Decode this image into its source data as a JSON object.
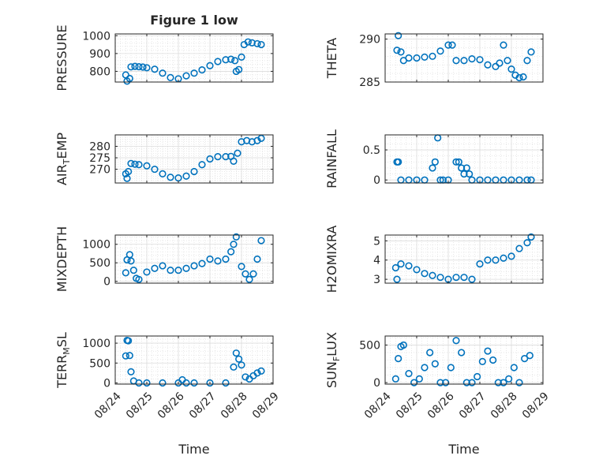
{
  "chart_data": [
    {
      "type": "scatter",
      "panel": "pressure",
      "title": "Figure 1 low",
      "ylabel": "PRESSURE",
      "ylabel_sub": "",
      "xlabel": "",
      "xlim": [
        "08/24",
        "08/29"
      ],
      "ylim": [
        740,
        1010
      ],
      "yticks": [
        800,
        900,
        1000
      ],
      "xticks": [],
      "marker_color": "#0072BD",
      "grid": true,
      "x": [
        "08/24 08:00",
        "08/24 09:00",
        "08/24 11:00",
        "08/24 12:00",
        "08/24 15:00",
        "08/24 18:00",
        "08/24 21:00",
        "08/25 00:00",
        "08/25 06:00",
        "08/25 12:00",
        "08/25 18:00",
        "08/26 00:00",
        "08/26 06:00",
        "08/26 12:00",
        "08/26 18:00",
        "08/27 00:00",
        "08/27 06:00",
        "08/27 12:00",
        "08/27 16:00",
        "08/27 19:00",
        "08/27 20:00",
        "08/27 22:00",
        "08/28 00:00",
        "08/28 02:00",
        "08/28 05:00",
        "08/28 08:00",
        "08/28 12:00",
        "08/28 15:00"
      ],
      "y": [
        780,
        745,
        760,
        825,
        828,
        826,
        824,
        820,
        812,
        790,
        765,
        758,
        775,
        790,
        808,
        832,
        855,
        865,
        868,
        860,
        800,
        810,
        880,
        950,
        965,
        960,
        955,
        950
      ]
    },
    {
      "type": "scatter",
      "panel": "theta",
      "title": "",
      "ylabel": "THETA",
      "ylabel_sub": "",
      "xlabel": "",
      "xlim": [
        "08/24",
        "08/29"
      ],
      "ylim": [
        285,
        290.6
      ],
      "yticks": [
        285,
        290
      ],
      "xticks": [],
      "marker_color": "#0072BD",
      "grid": true,
      "x": [
        "08/24 09:00",
        "08/24 10:00",
        "08/24 12:00",
        "08/24 14:00",
        "08/24 18:00",
        "08/25 00:00",
        "08/25 06:00",
        "08/25 12:00",
        "08/25 18:00",
        "08/26 00:00",
        "08/26 03:00",
        "08/26 06:00",
        "08/26 12:00",
        "08/26 18:00",
        "08/27 00:00",
        "08/27 06:00",
        "08/27 12:00",
        "08/27 15:00",
        "08/27 18:00",
        "08/27 21:00",
        "08/28 00:00",
        "08/28 03:00",
        "08/28 06:00",
        "08/28 09:00",
        "08/28 12:00",
        "08/28 15:00"
      ],
      "y": [
        288.7,
        290.4,
        288.5,
        287.5,
        287.8,
        287.8,
        287.9,
        288.0,
        288.6,
        289.3,
        289.3,
        287.5,
        287.5,
        287.7,
        287.6,
        287.0,
        286.8,
        287.2,
        289.3,
        287.5,
        286.5,
        285.8,
        285.5,
        285.6,
        287.5,
        288.5
      ]
    },
    {
      "type": "scatter",
      "panel": "air_temp",
      "title": "",
      "ylabel": "AIR",
      "ylabel_sub": "T",
      "ylabel_suffix": "EMP",
      "xlabel": "",
      "xlim": [
        "08/24",
        "08/29"
      ],
      "ylim": [
        264,
        285
      ],
      "yticks": [
        270,
        275,
        280
      ],
      "xticks": [],
      "marker_color": "#0072BD",
      "grid": true,
      "x": [
        "08/24 08:00",
        "08/24 09:00",
        "08/24 10:00",
        "08/24 12:00",
        "08/24 15:00",
        "08/24 18:00",
        "08/25 00:00",
        "08/25 06:00",
        "08/25 12:00",
        "08/25 18:00",
        "08/26 00:00",
        "08/26 06:00",
        "08/26 12:00",
        "08/26 18:00",
        "08/27 00:00",
        "08/27 06:00",
        "08/27 12:00",
        "08/27 16:00",
        "08/27 18:00",
        "08/27 21:00",
        "08/28 00:00",
        "08/28 04:00",
        "08/28 08:00",
        "08/28 12:00",
        "08/28 15:00"
      ],
      "y": [
        268,
        266,
        269,
        272.5,
        272.2,
        272,
        271.5,
        270,
        268,
        266.5,
        266.2,
        267,
        269,
        272,
        274.5,
        275.5,
        275.5,
        275.6,
        273.5,
        277,
        282,
        282.5,
        282,
        282.5,
        283.5
      ]
    },
    {
      "type": "scatter",
      "panel": "rainfall",
      "title": "",
      "ylabel": "RAINFALL",
      "ylabel_sub": "",
      "xlabel": "",
      "xlim": [
        "08/24",
        "08/29"
      ],
      "ylim": [
        -0.05,
        0.75
      ],
      "yticks": [
        0,
        0.5
      ],
      "xticks": [],
      "marker_color": "#0072BD",
      "grid": true,
      "x": [
        "08/24 09:00",
        "08/24 10:00",
        "08/24 12:00",
        "08/24 18:00",
        "08/25 00:00",
        "08/25 06:00",
        "08/25 12:00",
        "08/25 14:00",
        "08/25 16:00",
        "08/25 18:00",
        "08/25 20:00",
        "08/26 00:00",
        "08/26 06:00",
        "08/26 08:00",
        "08/26 10:00",
        "08/26 12:00",
        "08/26 14:00",
        "08/26 16:00",
        "08/26 18:00",
        "08/27 00:00",
        "08/27 06:00",
        "08/27 12:00",
        "08/27 18:00",
        "08/28 00:00",
        "08/28 06:00",
        "08/28 12:00",
        "08/28 15:00"
      ],
      "y": [
        0.3,
        0.3,
        0,
        0,
        0,
        0,
        0.2,
        0.3,
        0.7,
        0,
        0,
        0,
        0.3,
        0.3,
        0.2,
        0.1,
        0.2,
        0.1,
        0,
        0,
        0,
        0,
        0,
        0,
        0,
        0,
        0
      ]
    },
    {
      "type": "scatter",
      "panel": "mixdepth",
      "title": "",
      "ylabel": "MIXDEPTH",
      "ylabel_sub": "",
      "xlabel": "",
      "xlim": [
        "08/24",
        "08/29"
      ],
      "ylim": [
        -50,
        1250
      ],
      "yticks": [
        0,
        500,
        1000
      ],
      "xticks": [],
      "marker_color": "#0072BD",
      "grid": true,
      "x": [
        "08/24 08:00",
        "08/24 09:00",
        "08/24 11:00",
        "08/24 12:00",
        "08/24 14:00",
        "08/24 16:00",
        "08/24 18:00",
        "08/25 00:00",
        "08/25 06:00",
        "08/25 12:00",
        "08/25 18:00",
        "08/26 00:00",
        "08/26 06:00",
        "08/26 12:00",
        "08/26 18:00",
        "08/27 00:00",
        "08/27 06:00",
        "08/27 12:00",
        "08/27 16:00",
        "08/27 18:00",
        "08/27 20:00",
        "08/28 00:00",
        "08/28 03:00",
        "08/28 06:00",
        "08/28 09:00",
        "08/28 12:00",
        "08/28 15:00"
      ],
      "y": [
        230,
        580,
        720,
        550,
        300,
        80,
        50,
        250,
        350,
        420,
        300,
        300,
        350,
        420,
        480,
        600,
        550,
        600,
        800,
        1000,
        1200,
        400,
        200,
        50,
        200,
        600,
        1100
      ]
    },
    {
      "type": "scatter",
      "panel": "h2omixra",
      "title": "",
      "ylabel": "H2OMIXRA",
      "ylabel_sub": "",
      "xlabel": "",
      "xlim": [
        "08/24",
        "08/29"
      ],
      "ylim": [
        2.8,
        5.3
      ],
      "yticks": [
        3,
        4,
        5
      ],
      "xticks": [],
      "marker_color": "#0072BD",
      "grid": true,
      "x": [
        "08/24 08:00",
        "08/24 09:00",
        "08/24 12:00",
        "08/24 18:00",
        "08/25 00:00",
        "08/25 06:00",
        "08/25 12:00",
        "08/25 18:00",
        "08/26 00:00",
        "08/26 06:00",
        "08/26 12:00",
        "08/26 18:00",
        "08/27 00:00",
        "08/27 06:00",
        "08/27 12:00",
        "08/27 18:00",
        "08/28 00:00",
        "08/28 06:00",
        "08/28 12:00",
        "08/28 15:00"
      ],
      "y": [
        3.6,
        3.0,
        3.8,
        3.7,
        3.5,
        3.3,
        3.2,
        3.1,
        3.0,
        3.1,
        3.1,
        3.0,
        3.8,
        4.0,
        4.0,
        4.1,
        4.2,
        4.6,
        4.9,
        5.2
      ]
    },
    {
      "type": "scatter",
      "panel": "terr_msl",
      "title": "",
      "ylabel": "TERR",
      "ylabel_sub": "M",
      "ylabel_suffix": "SL",
      "xlabel": "Time",
      "xlim": [
        "08/24",
        "08/29"
      ],
      "ylim": [
        -30,
        1180
      ],
      "yticks": [
        0,
        500,
        1000
      ],
      "xticks": [
        "08/24",
        "08/25",
        "08/26",
        "08/27",
        "08/28",
        "08/29"
      ],
      "marker_color": "#0072BD",
      "grid": true,
      "x": [
        "08/24 08:00",
        "08/24 09:00",
        "08/24 10:00",
        "08/24 11:00",
        "08/24 12:00",
        "08/24 14:00",
        "08/24 18:00",
        "08/25 00:00",
        "08/25 12:00",
        "08/26 00:00",
        "08/26 03:00",
        "08/26 06:00",
        "08/26 12:00",
        "08/27 00:00",
        "08/27 12:00",
        "08/27 18:00",
        "08/27 20:00",
        "08/27 22:00",
        "08/28 00:00",
        "08/28 03:00",
        "08/28 06:00",
        "08/28 09:00",
        "08/28 12:00",
        "08/28 15:00"
      ],
      "y": [
        680,
        1070,
        1060,
        690,
        280,
        50,
        0,
        0,
        0,
        0,
        80,
        0,
        0,
        0,
        0,
        400,
        750,
        600,
        450,
        150,
        100,
        180,
        250,
        300
      ]
    },
    {
      "type": "scatter",
      "panel": "sun_flux",
      "title": "",
      "ylabel": "SUN",
      "ylabel_sub": "F",
      "ylabel_suffix": "LUX",
      "xlabel": "Time",
      "xlim": [
        "08/24",
        "08/29"
      ],
      "ylim": [
        -20,
        620
      ],
      "yticks": [
        0,
        500
      ],
      "xticks": [
        "08/24",
        "08/25",
        "08/26",
        "08/27",
        "08/28",
        "08/29"
      ],
      "marker_color": "#0072BD",
      "grid": true,
      "x": [
        "08/24 08:00",
        "08/24 10:00",
        "08/24 12:00",
        "08/24 14:00",
        "08/24 18:00",
        "08/24 22:00",
        "08/25 02:00",
        "08/25 06:00",
        "08/25 10:00",
        "08/25 14:00",
        "08/25 18:00",
        "08/25 22:00",
        "08/26 02:00",
        "08/26 06:00",
        "08/26 10:00",
        "08/26 14:00",
        "08/26 18:00",
        "08/26 22:00",
        "08/27 02:00",
        "08/27 06:00",
        "08/27 10:00",
        "08/27 14:00",
        "08/27 18:00",
        "08/27 22:00",
        "08/28 02:00",
        "08/28 06:00",
        "08/28 10:00",
        "08/28 14:00"
      ],
      "y": [
        50,
        320,
        480,
        500,
        120,
        0,
        50,
        200,
        400,
        250,
        0,
        0,
        200,
        560,
        400,
        0,
        0,
        80,
        280,
        420,
        300,
        0,
        0,
        50,
        200,
        0,
        320,
        360
      ]
    }
  ]
}
